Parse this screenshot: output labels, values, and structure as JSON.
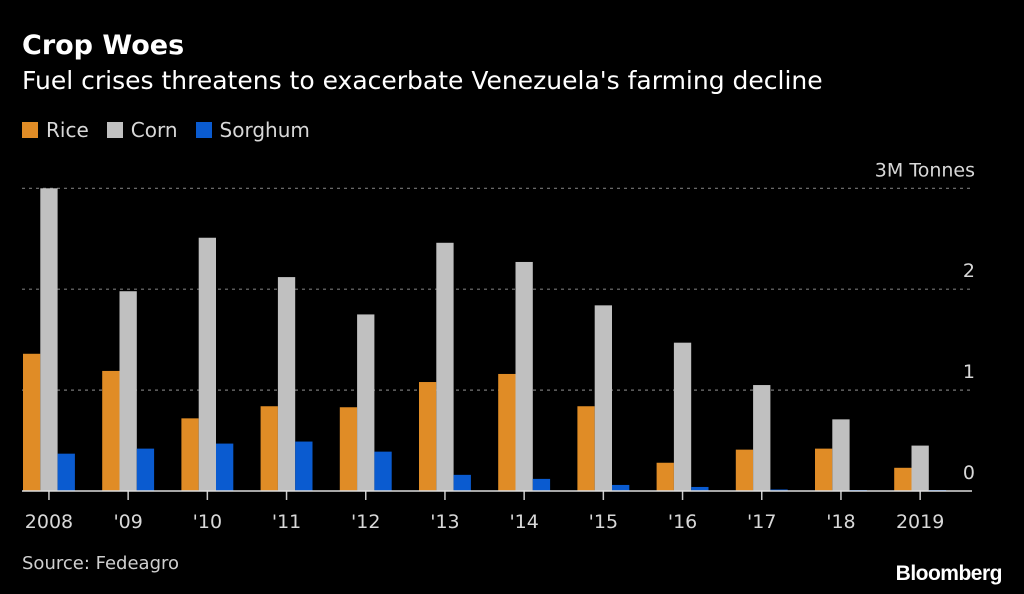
{
  "chart_data": {
    "type": "bar",
    "title": "Crop Woes",
    "subtitle": "Fuel crises threatens to exacerbate Venezuela's farming decline",
    "categories": [
      "2008",
      "'09",
      "'10",
      "'11",
      "'12",
      "'13",
      "'14",
      "'15",
      "'16",
      "'17",
      "'18",
      "2019"
    ],
    "series": [
      {
        "name": "Rice",
        "color": "#e08c26",
        "values": [
          1.36,
          1.19,
          0.72,
          0.84,
          0.83,
          1.08,
          1.16,
          0.84,
          0.28,
          0.41,
          0.42,
          0.23
        ]
      },
      {
        "name": "Corn",
        "color": "#c0c0c0",
        "values": [
          3.0,
          1.98,
          2.51,
          2.12,
          1.75,
          2.46,
          2.27,
          1.84,
          1.47,
          1.05,
          0.71,
          0.45
        ]
      },
      {
        "name": "Sorghum",
        "color": "#0a5bd0",
        "values": [
          0.37,
          0.42,
          0.47,
          0.49,
          0.39,
          0.16,
          0.12,
          0.06,
          0.04,
          0.015,
          0.008,
          0.008
        ]
      }
    ],
    "ylabel": "",
    "unit_label": "3M Tonnes",
    "yticks": [
      "0",
      "1",
      "2",
      "3M Tonnes"
    ],
    "ytick_values": [
      0,
      1,
      2,
      3
    ],
    "ylim": [
      0,
      3
    ],
    "grid": true,
    "legend_position": "top-left",
    "source": "Source: Fedeagro",
    "brand": "Bloomberg"
  }
}
